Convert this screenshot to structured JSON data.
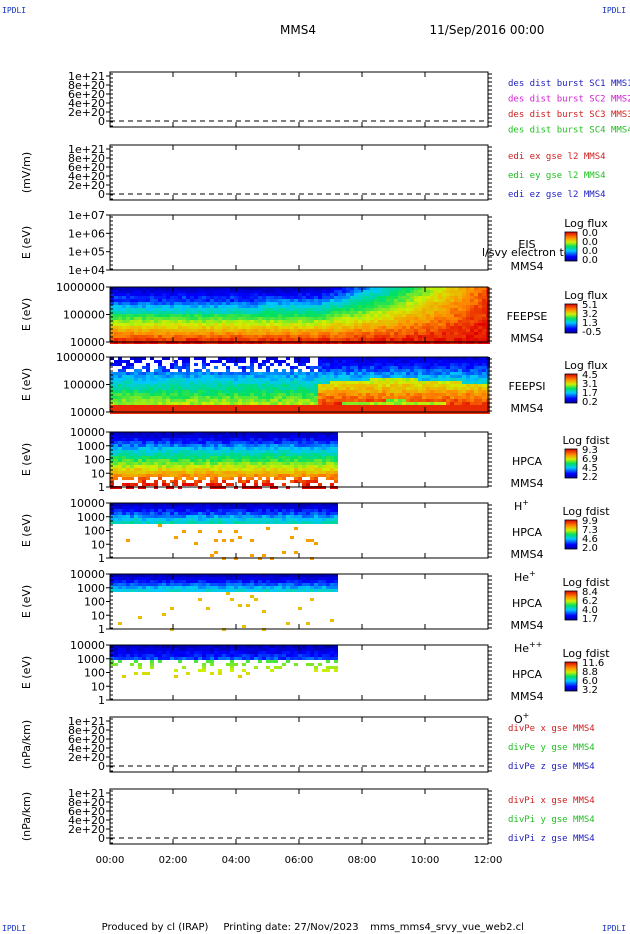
{
  "header": {
    "corner_label": "IPDLI",
    "spacecraft": "MMS4",
    "datetime": "11/Sep/2016 00:00"
  },
  "footer": {
    "produced_by": "Produced by cl (IRAP)",
    "printing_date": "Printing date: 27/Nov/2023",
    "filename": "mms_mms4_srvy_vue_web2.cl"
  },
  "chart_data": {
    "type": "heatmap",
    "x_ticks": [
      "00:00",
      "02:00",
      "04:00",
      "06:00",
      "08:00",
      "10:00",
      "12:00"
    ],
    "x_range_hours": [
      0,
      12
    ],
    "panels": [
      {
        "id": "des-dist",
        "kind": "line",
        "ylabel": "",
        "y_ticks": [
          "1e+21",
          "8e+20",
          "6e+20",
          "4e+20",
          "2e+20",
          "0"
        ],
        "y_values": [
          1e+21,
          8e+20,
          6e+20,
          4e+20,
          2e+20,
          0
        ],
        "dashed_zero": true,
        "legend": [
          {
            "text": "des dist burst SC1 MMS1",
            "color": "#2020c0"
          },
          {
            "text": "des dist burst SC2 MMS2",
            "color": "#d020d0"
          },
          {
            "text": "des dist burst SC3 MMS3",
            "color": "#d02020"
          },
          {
            "text": "des dist burst SC4 MMS4",
            "color": "#20c020"
          }
        ]
      },
      {
        "id": "edi",
        "kind": "line",
        "ylabel": "(mV/m)",
        "y_ticks": [
          "1e+21",
          "8e+20",
          "6e+20",
          "4e+20",
          "2e+20",
          "0"
        ],
        "y_values": [
          1e+21,
          8e+20,
          6e+20,
          4e+20,
          2e+20,
          0
        ],
        "dashed_zero": true,
        "legend": [
          {
            "text": "edi ex gse l2 MMS4",
            "color": "#d02020"
          },
          {
            "text": "edi ey gse l2 MMS4",
            "color": "#20c020"
          },
          {
            "text": "edi ez gse l2 MMS4",
            "color": "#2020c0"
          }
        ]
      },
      {
        "id": "eis",
        "kind": "empty",
        "ylabel": "E (eV)",
        "y_ticks": [
          "1e+07",
          "1e+06",
          "1e+05",
          "1e+04"
        ],
        "right_labels": [
          "EIS",
          "MMS4"
        ],
        "overlay_text": "l/svy electron to",
        "colorbar": {
          "title": "Log flux",
          "ticks": [
            "0.0",
            "0.0",
            "0.0",
            "0.0"
          ]
        }
      },
      {
        "id": "feepse",
        "kind": "spectro",
        "ylabel": "E (eV)",
        "y_ticks": [
          "1000000",
          "100000",
          "10000"
        ],
        "right_labels": [
          "FEEPSE",
          "MMS4"
        ],
        "colorbar": {
          "title": "Log flux",
          "ticks": [
            "5.1",
            "3.2",
            "1.3",
            "-0.5"
          ]
        },
        "data_until_hour": 12
      },
      {
        "id": "feepsi",
        "kind": "spectro",
        "ylabel": "E (eV)",
        "y_ticks": [
          "1000000",
          "100000",
          "10000"
        ],
        "right_labels": [
          "FEEPSI",
          "MMS4"
        ],
        "colorbar": {
          "title": "Log flux",
          "ticks": [
            "4.5",
            "3.1",
            "1.7",
            "0.2"
          ]
        },
        "data_until_hour": 12
      },
      {
        "id": "hpca-h",
        "kind": "spectro",
        "ylabel": "E (eV)",
        "y_ticks": [
          "10000",
          "1000",
          "100",
          "10",
          "1"
        ],
        "right_labels": [
          "HPCA",
          "MMS4"
        ],
        "species": "H",
        "species_sup": "+",
        "colorbar": {
          "title": "Log fdist",
          "ticks": [
            "9.3",
            "6.9",
            "4.5",
            "2.2"
          ]
        },
        "data_until_hour": 7.2
      },
      {
        "id": "hpca-he",
        "kind": "spectro",
        "ylabel": "E (eV)",
        "y_ticks": [
          "10000",
          "1000",
          "100",
          "10",
          "1"
        ],
        "right_labels": [
          "HPCA",
          "MMS4"
        ],
        "species": "He",
        "species_sup": "+",
        "colorbar": {
          "title": "Log fdist",
          "ticks": [
            "9.9",
            "7.3",
            "4.6",
            "2.0"
          ]
        },
        "data_until_hour": 7.2
      },
      {
        "id": "hpca-hepp",
        "kind": "spectro",
        "ylabel": "E (eV)",
        "y_ticks": [
          "10000",
          "1000",
          "100",
          "10",
          "1"
        ],
        "right_labels": [
          "HPCA",
          "MMS4"
        ],
        "species": "He",
        "species_sup": "++",
        "colorbar": {
          "title": "Log fdist",
          "ticks": [
            "8.4",
            "6.2",
            "4.0",
            "1.7"
          ]
        },
        "data_until_hour": 7.2
      },
      {
        "id": "hpca-o",
        "kind": "spectro",
        "ylabel": "E (eV)",
        "y_ticks": [
          "10000",
          "1000",
          "100",
          "10",
          "1"
        ],
        "right_labels": [
          "HPCA",
          "MMS4"
        ],
        "species": "O",
        "species_sup": "+",
        "colorbar": {
          "title": "Log fdist",
          "ticks": [
            "11.6",
            "8.8",
            "6.0",
            "3.2"
          ]
        },
        "data_until_hour": 7.2
      },
      {
        "id": "divpe",
        "kind": "line",
        "ylabel": "(nPa/km)",
        "y_ticks": [
          "1e+21",
          "8e+20",
          "6e+20",
          "4e+20",
          "2e+20",
          "0"
        ],
        "y_values": [
          1e+21,
          8e+20,
          6e+20,
          4e+20,
          2e+20,
          0
        ],
        "dashed_zero": true,
        "legend": [
          {
            "text": "divPe x gse MMS4",
            "color": "#d02020"
          },
          {
            "text": "divPe y gse MMS4",
            "color": "#20c020"
          },
          {
            "text": "divPe z gse MMS4",
            "color": "#2020c0"
          }
        ]
      },
      {
        "id": "divpi",
        "kind": "line",
        "ylabel": "(nPa/km)",
        "y_ticks": [
          "1e+21",
          "8e+20",
          "6e+20",
          "4e+20",
          "2e+20",
          "0"
        ],
        "y_values": [
          1e+21,
          8e+20,
          6e+20,
          4e+20,
          2e+20,
          0
        ],
        "dashed_zero": true,
        "legend": [
          {
            "text": "divPi x gse MMS4",
            "color": "#d02020"
          },
          {
            "text": "divPi y gse MMS4",
            "color": "#20c020"
          },
          {
            "text": "divPi z gse MMS4",
            "color": "#2020c0"
          }
        ]
      }
    ]
  }
}
